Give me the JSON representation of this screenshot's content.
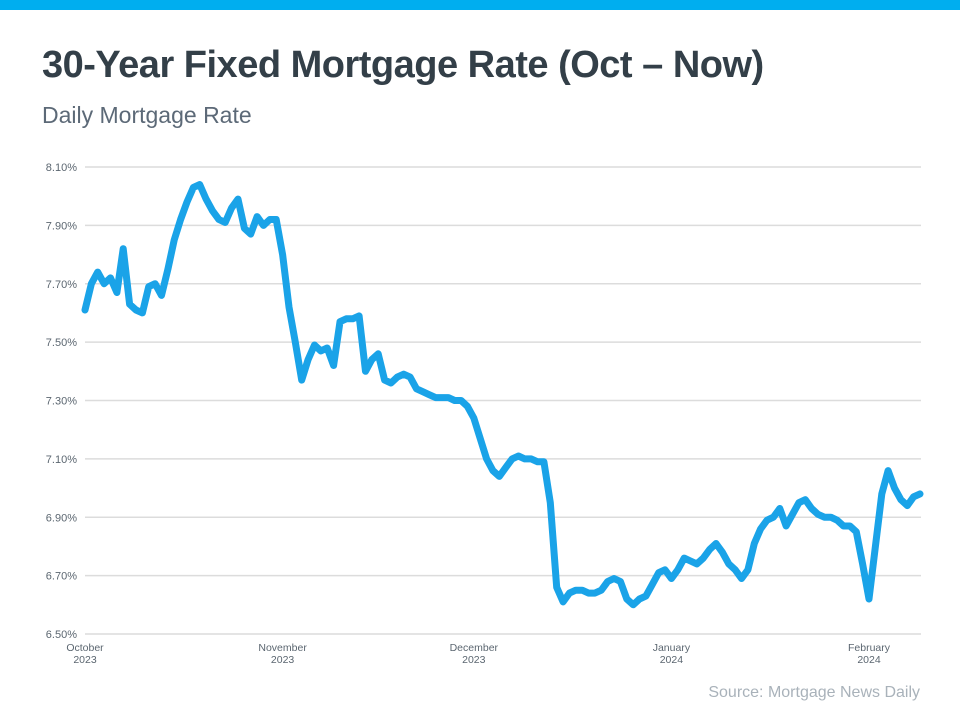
{
  "header": {
    "title": "30-Year Fixed Mortgage Rate (Oct – Now)",
    "subtitle": "Daily Mortgage Rate"
  },
  "footer": {
    "source": "Source: Mortgage News Daily"
  },
  "theme": {
    "accent_bar": "#00AEEF",
    "line": "#1AA3E8",
    "grid": "#DCDCDC",
    "title_color": "#333F48",
    "subtitle_color": "#5C6977",
    "tick_color": "#5B6670",
    "source_color": "#A9B2BA",
    "background": "#FFFFFF"
  },
  "chart_data": {
    "type": "line",
    "title": "30-Year Fixed Mortgage Rate (Oct – Now)",
    "subtitle": "Daily Mortgage Rate",
    "series_name": "Daily 30-year fixed mortgage rate",
    "unit": "%",
    "ylim": [
      6.5,
      8.1
    ],
    "y_ticks": [
      "8.10%",
      "7.90%",
      "7.70%",
      "7.50%",
      "7.30%",
      "7.10%",
      "6.90%",
      "6.70%",
      "6.50%"
    ],
    "x_ticks": [
      {
        "day_index": 0,
        "month": "October",
        "year": "2023"
      },
      {
        "day_index": 31,
        "month": "November",
        "year": "2023"
      },
      {
        "day_index": 61,
        "month": "December",
        "year": "2023"
      },
      {
        "day_index": 92,
        "month": "January",
        "year": "2024"
      },
      {
        "day_index": 123,
        "month": "February",
        "year": "2024"
      }
    ],
    "grid": "horizontal",
    "legend": "none",
    "values": [
      7.61,
      7.7,
      7.74,
      7.7,
      7.72,
      7.67,
      7.82,
      7.63,
      7.61,
      7.6,
      7.69,
      7.7,
      7.66,
      7.75,
      7.85,
      7.92,
      7.98,
      8.03,
      8.04,
      7.99,
      7.95,
      7.92,
      7.91,
      7.96,
      7.99,
      7.89,
      7.87,
      7.93,
      7.9,
      7.92,
      7.92,
      7.8,
      7.62,
      7.5,
      7.37,
      7.44,
      7.49,
      7.47,
      7.48,
      7.42,
      7.57,
      7.58,
      7.58,
      7.59,
      7.4,
      7.44,
      7.46,
      7.37,
      7.36,
      7.38,
      7.39,
      7.38,
      7.34,
      7.33,
      7.32,
      7.31,
      7.31,
      7.31,
      7.3,
      7.3,
      7.28,
      7.24,
      7.17,
      7.1,
      7.06,
      7.04,
      7.07,
      7.1,
      7.11,
      7.1,
      7.1,
      7.09,
      7.09,
      6.95,
      6.66,
      6.61,
      6.64,
      6.65,
      6.65,
      6.64,
      6.64,
      6.65,
      6.68,
      6.69,
      6.68,
      6.62,
      6.6,
      6.62,
      6.63,
      6.67,
      6.71,
      6.72,
      6.69,
      6.72,
      6.76,
      6.75,
      6.74,
      6.76,
      6.79,
      6.81,
      6.78,
      6.74,
      6.72,
      6.69,
      6.72,
      6.81,
      6.86,
      6.89,
      6.9,
      6.93,
      6.87,
      6.91,
      6.95,
      6.96,
      6.93,
      6.91,
      6.9,
      6.9,
      6.89,
      6.87,
      6.87,
      6.85,
      6.74,
      6.62,
      6.8,
      6.98,
      7.06,
      7.0,
      6.96,
      6.94,
      6.97,
      6.98
    ]
  }
}
